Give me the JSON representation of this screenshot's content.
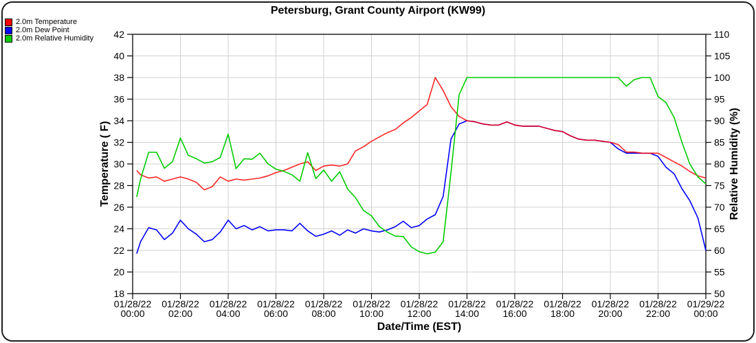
{
  "frame": {
    "border_color": "#1c1c1c",
    "background": "#ffffff"
  },
  "title": "Petersburg, Grant County Airport (KW99)",
  "legend": {
    "items": [
      {
        "label": "2.0m Temperature",
        "color": "#ff0000"
      },
      {
        "label": "2.0m Dew Point",
        "color": "#0000ff"
      },
      {
        "label": "2.0m Relative Humidity",
        "color": "#00cc00"
      }
    ]
  },
  "chart_data": {
    "type": "line",
    "title": "Petersburg, Grant County Airport (KW99)",
    "grid": {
      "show": true,
      "color": "#d0d0d0"
    },
    "x": {
      "label": "Date/Time (EST)",
      "unit": "hours",
      "min": 0,
      "max": 24,
      "tick_step_hours": 2,
      "tick_labels": [
        {
          "date": "01/28/22",
          "time": "00:00"
        },
        {
          "date": "01/28/22",
          "time": "02:00"
        },
        {
          "date": "01/28/22",
          "time": "04:00"
        },
        {
          "date": "01/28/22",
          "time": "06:00"
        },
        {
          "date": "01/28/22",
          "time": "08:00"
        },
        {
          "date": "01/28/22",
          "time": "10:00"
        },
        {
          "date": "01/28/22",
          "time": "12:00"
        },
        {
          "date": "01/28/22",
          "time": "14:00"
        },
        {
          "date": "01/28/22",
          "time": "16:00"
        },
        {
          "date": "01/28/22",
          "time": "18:00"
        },
        {
          "date": "01/28/22",
          "time": "20:00"
        },
        {
          "date": "01/28/22",
          "time": "22:00"
        },
        {
          "date": "01/29/22",
          "time": "00:00"
        }
      ]
    },
    "axes": {
      "left": {
        "label": "Temperature ( F)",
        "min": 18,
        "max": 42,
        "ticks": [
          42,
          40,
          38,
          36,
          34,
          32,
          30,
          28,
          26,
          24,
          22,
          20,
          18
        ]
      },
      "right": {
        "label": "Relative Humidity (%)",
        "min": 50,
        "max": 110,
        "ticks": [
          110,
          105,
          100,
          95,
          90,
          85,
          80,
          75,
          70,
          65,
          60,
          55,
          50
        ]
      }
    },
    "x_hours": [
      0.17,
      0.33,
      0.67,
      1,
      1.33,
      1.67,
      2,
      2.33,
      2.67,
      3,
      3.33,
      3.67,
      4,
      4.33,
      4.67,
      5,
      5.33,
      5.67,
      6,
      6.33,
      6.67,
      7,
      7.33,
      7.67,
      8,
      8.33,
      8.67,
      9,
      9.33,
      9.67,
      10,
      10.33,
      10.67,
      11,
      11.33,
      11.67,
      12,
      12.33,
      12.67,
      13,
      13.33,
      13.67,
      14,
      14.33,
      14.67,
      15,
      15.33,
      15.67,
      16,
      16.33,
      16.67,
      17,
      17.33,
      17.67,
      18,
      18.33,
      18.67,
      19,
      19.33,
      19.67,
      20,
      20.33,
      20.67,
      21,
      21.33,
      21.67,
      22,
      22.33,
      22.67,
      23,
      23.33,
      23.67,
      24
    ],
    "series": [
      {
        "name": "2.0m Temperature",
        "axis": "left",
        "color": "#ff0000",
        "values": [
          29.4,
          29.0,
          28.7,
          28.8,
          28.4,
          28.6,
          28.8,
          28.6,
          28.3,
          27.6,
          27.9,
          28.8,
          28.4,
          28.6,
          28.5,
          28.6,
          28.7,
          28.9,
          29.2,
          29.4,
          29.7,
          30.0,
          30.2,
          29.4,
          29.8,
          29.9,
          29.8,
          30.0,
          31.2,
          31.6,
          32.1,
          32.5,
          32.9,
          33.2,
          33.8,
          34.3,
          34.9,
          35.5,
          38.0,
          36.8,
          35.3,
          34.4,
          34.0,
          33.9,
          33.7,
          33.6,
          33.6,
          33.9,
          33.6,
          33.5,
          33.5,
          33.5,
          33.3,
          33.1,
          33.0,
          32.6,
          32.3,
          32.2,
          32.2,
          32.1,
          32.0,
          31.8,
          31.1,
          31.1,
          31.0,
          31.0,
          31.0,
          30.6,
          30.2,
          29.8,
          29.3,
          28.9,
          28.7
        ]
      },
      {
        "name": "2.0m Dew Point",
        "axis": "left",
        "color": "#0000ff",
        "values": [
          21.7,
          22.8,
          24.1,
          23.9,
          23.0,
          23.6,
          24.8,
          24.0,
          23.5,
          22.8,
          23.0,
          23.7,
          24.8,
          24.0,
          24.3,
          23.9,
          24.2,
          23.8,
          23.9,
          23.9,
          23.8,
          24.5,
          23.8,
          23.3,
          23.5,
          23.8,
          23.4,
          23.9,
          23.6,
          24.0,
          23.8,
          23.7,
          23.9,
          24.2,
          24.7,
          24.1,
          24.3,
          24.9,
          25.3,
          27.0,
          32.3,
          33.7,
          34.0,
          33.9,
          33.7,
          33.6,
          33.6,
          33.9,
          33.6,
          33.5,
          33.5,
          33.5,
          33.3,
          33.1,
          33.0,
          32.6,
          32.3,
          32.2,
          32.2,
          32.1,
          32.0,
          31.4,
          31.0,
          31.0,
          31.0,
          31.0,
          30.7,
          29.7,
          29.1,
          27.7,
          26.6,
          25.0,
          22.0
        ]
      },
      {
        "name": "2.0m Relative Humidity",
        "axis": "right",
        "color": "#00cc00",
        "values": [
          72.4,
          76.5,
          82.7,
          82.7,
          79.0,
          80.5,
          86.0,
          82.0,
          81.2,
          80.2,
          80.5,
          81.5,
          86.9,
          78.9,
          81.2,
          81.1,
          82.5,
          80.0,
          78.8,
          78.3,
          77.5,
          76.0,
          82.6,
          76.6,
          78.6,
          76.0,
          78.2,
          74.2,
          72.2,
          69.2,
          68.0,
          65.5,
          64.2,
          63.3,
          63.2,
          60.8,
          59.7,
          59.2,
          59.6,
          62.0,
          78.0,
          96.0,
          100,
          100,
          100,
          100,
          100,
          100,
          100,
          100,
          100,
          100,
          100,
          100,
          100,
          100,
          100,
          100,
          100,
          100,
          100,
          100,
          98.0,
          99.5,
          100,
          100,
          95.6,
          94.2,
          90.8,
          85.0,
          80.0,
          77.0,
          75.4
        ]
      }
    ]
  }
}
